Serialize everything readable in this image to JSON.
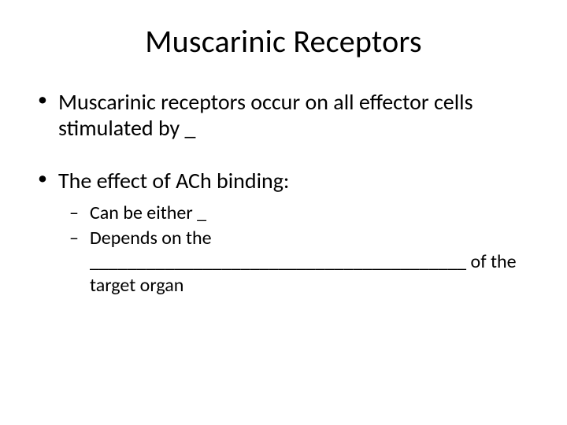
{
  "title": "Muscarinic Receptors",
  "bullets": [
    {
      "text": "Muscarinic receptors occur on all effector cells stimulated by _"
    },
    {
      "text": "The effect of ACh binding:",
      "sub": [
        "Can be either _",
        "Depends on the ________________________________________ of the target organ"
      ]
    }
  ],
  "colors": {
    "background": "#ffffff",
    "text": "#000000"
  },
  "typography": {
    "title_fontsize": 40,
    "body_fontsize": 28,
    "sub_fontsize": 24,
    "font_family": "Calibri"
  }
}
